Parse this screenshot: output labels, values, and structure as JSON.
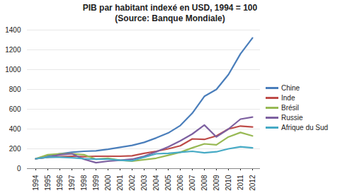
{
  "chart_data": {
    "type": "line",
    "title": "PIB par habitant indexé en USD, 1994 = 100",
    "subtitle": "(Source: Banque Mondiale)",
    "categories": [
      "1994",
      "1995",
      "1996",
      "1997",
      "1998",
      "1999",
      "2000",
      "2001",
      "2002",
      "2003",
      "2004",
      "2005",
      "2006",
      "2007",
      "2008",
      "2009",
      "2010",
      "2011",
      "2012"
    ],
    "series": [
      {
        "name": "Chine",
        "color": "#4a7ebb",
        "values": [
          100,
          130,
          150,
          165,
          175,
          180,
          195,
          215,
          235,
          265,
          310,
          360,
          435,
          560,
          730,
          800,
          950,
          1160,
          1320
        ]
      },
      {
        "name": "Inde",
        "color": "#be4b48",
        "values": [
          100,
          115,
          120,
          125,
          120,
          125,
          125,
          125,
          130,
          155,
          175,
          200,
          230,
          300,
          295,
          330,
          400,
          430,
          420
        ]
      },
      {
        "name": "Brésil",
        "color": "#98b954",
        "values": [
          100,
          140,
          150,
          150,
          140,
          95,
          105,
          85,
          75,
          90,
          105,
          135,
          165,
          210,
          250,
          240,
          320,
          365,
          330
        ]
      },
      {
        "name": "Russie",
        "color": "#7d60a0",
        "values": [
          100,
          115,
          140,
          150,
          95,
          60,
          75,
          85,
          95,
          125,
          170,
          220,
          280,
          350,
          440,
          320,
          400,
          500,
          520
        ]
      },
      {
        "name": "Afrique du Sud",
        "color": "#46aac5",
        "values": [
          100,
          115,
          115,
          110,
          100,
          95,
          95,
          85,
          80,
          115,
          150,
          155,
          165,
          175,
          160,
          170,
          200,
          220,
          210
        ]
      }
    ],
    "ylim": [
      0,
      1400
    ],
    "yticks": [
      0,
      200,
      400,
      600,
      800,
      1000,
      1200,
      1400
    ],
    "grid": true,
    "legend": "right"
  }
}
